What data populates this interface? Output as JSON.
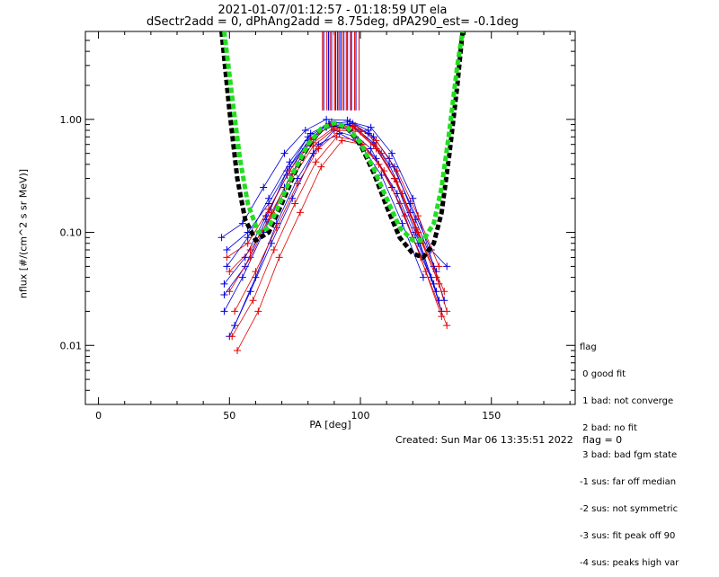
{
  "title_line1": "2021-01-07/01:12:57 - 01:18:59 UT ela",
  "title_line2": "dSectr2add = 0, dPhAng2add = 8.75deg, dPA290_est=  -0.1deg",
  "footer": {
    "created": "Created: Sun Mar 06 13:35:51 2022",
    "flag": "flag = 0"
  },
  "legend": {
    "title": "flag",
    "items": [
      " 0 good fit",
      " 1 bad: not converge",
      " 2 bad: no fit",
      " 3 bad: bad fgm state",
      "-1 sus: far off median",
      "-2 sus: not symmetric",
      "-3 sus: fit peak off 90",
      "-4 sus: peaks high var"
    ]
  },
  "chart_data": {
    "type": "line",
    "xlabel": "PA [deg]",
    "ylabel": "nflux [#/(cm^2 s sr MeV)]",
    "xlim": [
      -5,
      182
    ],
    "ylim": [
      0.003,
      6
    ],
    "yscale": "log",
    "xticks": [
      0,
      50,
      100,
      150
    ],
    "xtick_labels": [
      "0",
      "50",
      "100",
      "150"
    ],
    "yticks": [
      0.01,
      0.1,
      1.0
    ],
    "ytick_labels": [
      "0.01",
      "0.10",
      "1.00"
    ],
    "colors": {
      "red_series": "#e00000",
      "blue_series": "#0000e0",
      "fit_black": "#000000",
      "fit_green": "#22dd22"
    },
    "series": [
      {
        "color": "blue",
        "x": [
          48,
          56,
          64,
          72,
          80,
          88,
          96,
          104,
          112,
          120,
          128,
          132
        ],
        "y": [
          0.035,
          0.06,
          0.14,
          0.32,
          0.65,
          0.92,
          0.95,
          0.85,
          0.5,
          0.2,
          0.05,
          0.025
        ]
      },
      {
        "color": "blue",
        "x": [
          48,
          55,
          63,
          71,
          79,
          87,
          95,
          103,
          111,
          119,
          127,
          131
        ],
        "y": [
          0.02,
          0.04,
          0.1,
          0.25,
          0.55,
          0.85,
          0.9,
          0.75,
          0.4,
          0.15,
          0.04,
          0.02
        ]
      },
      {
        "color": "blue",
        "x": [
          49,
          57,
          65,
          73,
          81,
          89,
          97,
          105,
          113,
          121,
          129
        ],
        "y": [
          0.05,
          0.09,
          0.2,
          0.42,
          0.75,
          0.95,
          0.88,
          0.62,
          0.3,
          0.1,
          0.03
        ]
      },
      {
        "color": "blue",
        "x": [
          50,
          58,
          66,
          74,
          82,
          90,
          98,
          106,
          114,
          122,
          130
        ],
        "y": [
          0.012,
          0.03,
          0.08,
          0.2,
          0.5,
          0.8,
          0.7,
          0.45,
          0.22,
          0.08,
          0.025
        ]
      },
      {
        "color": "blue",
        "x": [
          47,
          55,
          63,
          71,
          79,
          87,
          95,
          103,
          111,
          119,
          127,
          133
        ],
        "y": [
          0.09,
          0.12,
          0.25,
          0.5,
          0.8,
          1.0,
          0.98,
          0.8,
          0.45,
          0.18,
          0.07,
          0.05
        ]
      },
      {
        "color": "blue",
        "x": [
          48,
          56,
          64,
          72,
          80,
          88,
          96,
          104,
          112,
          120,
          128
        ],
        "y": [
          0.028,
          0.05,
          0.13,
          0.35,
          0.7,
          0.9,
          0.8,
          0.55,
          0.25,
          0.09,
          0.035
        ]
      },
      {
        "color": "blue",
        "x": [
          52,
          60,
          68,
          76,
          84,
          92,
          100,
          108,
          116,
          124
        ],
        "y": [
          0.015,
          0.04,
          0.12,
          0.3,
          0.6,
          0.75,
          0.6,
          0.32,
          0.12,
          0.04
        ]
      },
      {
        "color": "blue",
        "x": [
          49,
          57,
          65,
          73,
          81,
          89,
          97,
          105,
          113,
          121,
          129
        ],
        "y": [
          0.07,
          0.1,
          0.18,
          0.38,
          0.68,
          0.88,
          0.92,
          0.7,
          0.38,
          0.13,
          0.045
        ]
      },
      {
        "color": "red",
        "x": [
          50,
          58,
          66,
          74,
          82,
          90,
          98,
          106,
          114,
          122,
          130,
          133
        ],
        "y": [
          0.03,
          0.06,
          0.15,
          0.33,
          0.62,
          0.85,
          0.82,
          0.55,
          0.28,
          0.1,
          0.035,
          0.02
        ]
      },
      {
        "color": "red",
        "x": [
          51,
          59,
          67,
          75,
          83,
          91,
          99,
          107,
          115,
          123,
          131
        ],
        "y": [
          0.012,
          0.025,
          0.07,
          0.18,
          0.42,
          0.7,
          0.65,
          0.4,
          0.18,
          0.06,
          0.018
        ]
      },
      {
        "color": "red",
        "x": [
          52,
          60,
          68,
          76,
          84,
          92,
          100,
          108,
          116,
          124,
          132
        ],
        "y": [
          0.02,
          0.045,
          0.11,
          0.27,
          0.55,
          0.8,
          0.78,
          0.5,
          0.22,
          0.08,
          0.03
        ]
      },
      {
        "color": "red",
        "x": [
          50,
          58,
          66,
          74,
          82,
          90,
          98,
          106,
          114,
          122,
          130
        ],
        "y": [
          0.045,
          0.07,
          0.14,
          0.3,
          0.58,
          0.82,
          0.88,
          0.65,
          0.35,
          0.14,
          0.05
        ]
      },
      {
        "color": "red",
        "x": [
          53,
          61,
          69,
          77,
          85,
          93,
          101,
          109,
          117,
          125,
          133
        ],
        "y": [
          0.009,
          0.02,
          0.06,
          0.15,
          0.38,
          0.65,
          0.6,
          0.35,
          0.14,
          0.045,
          0.015
        ]
      },
      {
        "color": "red",
        "x": [
          49,
          57,
          65,
          73,
          81,
          89,
          97,
          105,
          113,
          121,
          129
        ],
        "y": [
          0.06,
          0.08,
          0.16,
          0.35,
          0.66,
          0.9,
          0.86,
          0.6,
          0.3,
          0.11,
          0.04
        ]
      }
    ],
    "fits": [
      {
        "color": "black",
        "x": [
          47,
          50,
          53,
          56,
          60,
          65,
          70,
          75,
          80,
          85,
          90,
          95,
          100,
          105,
          110,
          115,
          120,
          124,
          128,
          131,
          134,
          137,
          139
        ],
        "y": [
          6.0,
          1.2,
          0.3,
          0.13,
          0.085,
          0.1,
          0.18,
          0.34,
          0.58,
          0.82,
          0.92,
          0.84,
          0.6,
          0.34,
          0.17,
          0.09,
          0.065,
          0.06,
          0.08,
          0.15,
          0.5,
          2.0,
          6.0
        ]
      },
      {
        "color": "green",
        "x": [
          48,
          51,
          54,
          57,
          61,
          65,
          70,
          75,
          80,
          85,
          90,
          95,
          100,
          105,
          110,
          115,
          120,
          124,
          128,
          131,
          134,
          137,
          139
        ],
        "y": [
          6.0,
          1.6,
          0.45,
          0.18,
          0.1,
          0.11,
          0.2,
          0.36,
          0.6,
          0.83,
          0.93,
          0.85,
          0.62,
          0.37,
          0.2,
          0.11,
          0.085,
          0.085,
          0.12,
          0.25,
          0.8,
          3.0,
          6.0
        ]
      }
    ],
    "vlines": {
      "ymin": 1.2,
      "ymax": 6,
      "red_x": [
        85.5,
        87.2,
        88.4,
        90.1,
        91.8,
        93.0,
        94.6,
        96.2,
        97.8,
        99.5
      ],
      "blue_x": [
        86.0,
        87.8,
        89.0,
        90.6,
        91.3,
        92.4,
        93.7,
        95.1,
        96.6,
        98.3
      ]
    }
  }
}
